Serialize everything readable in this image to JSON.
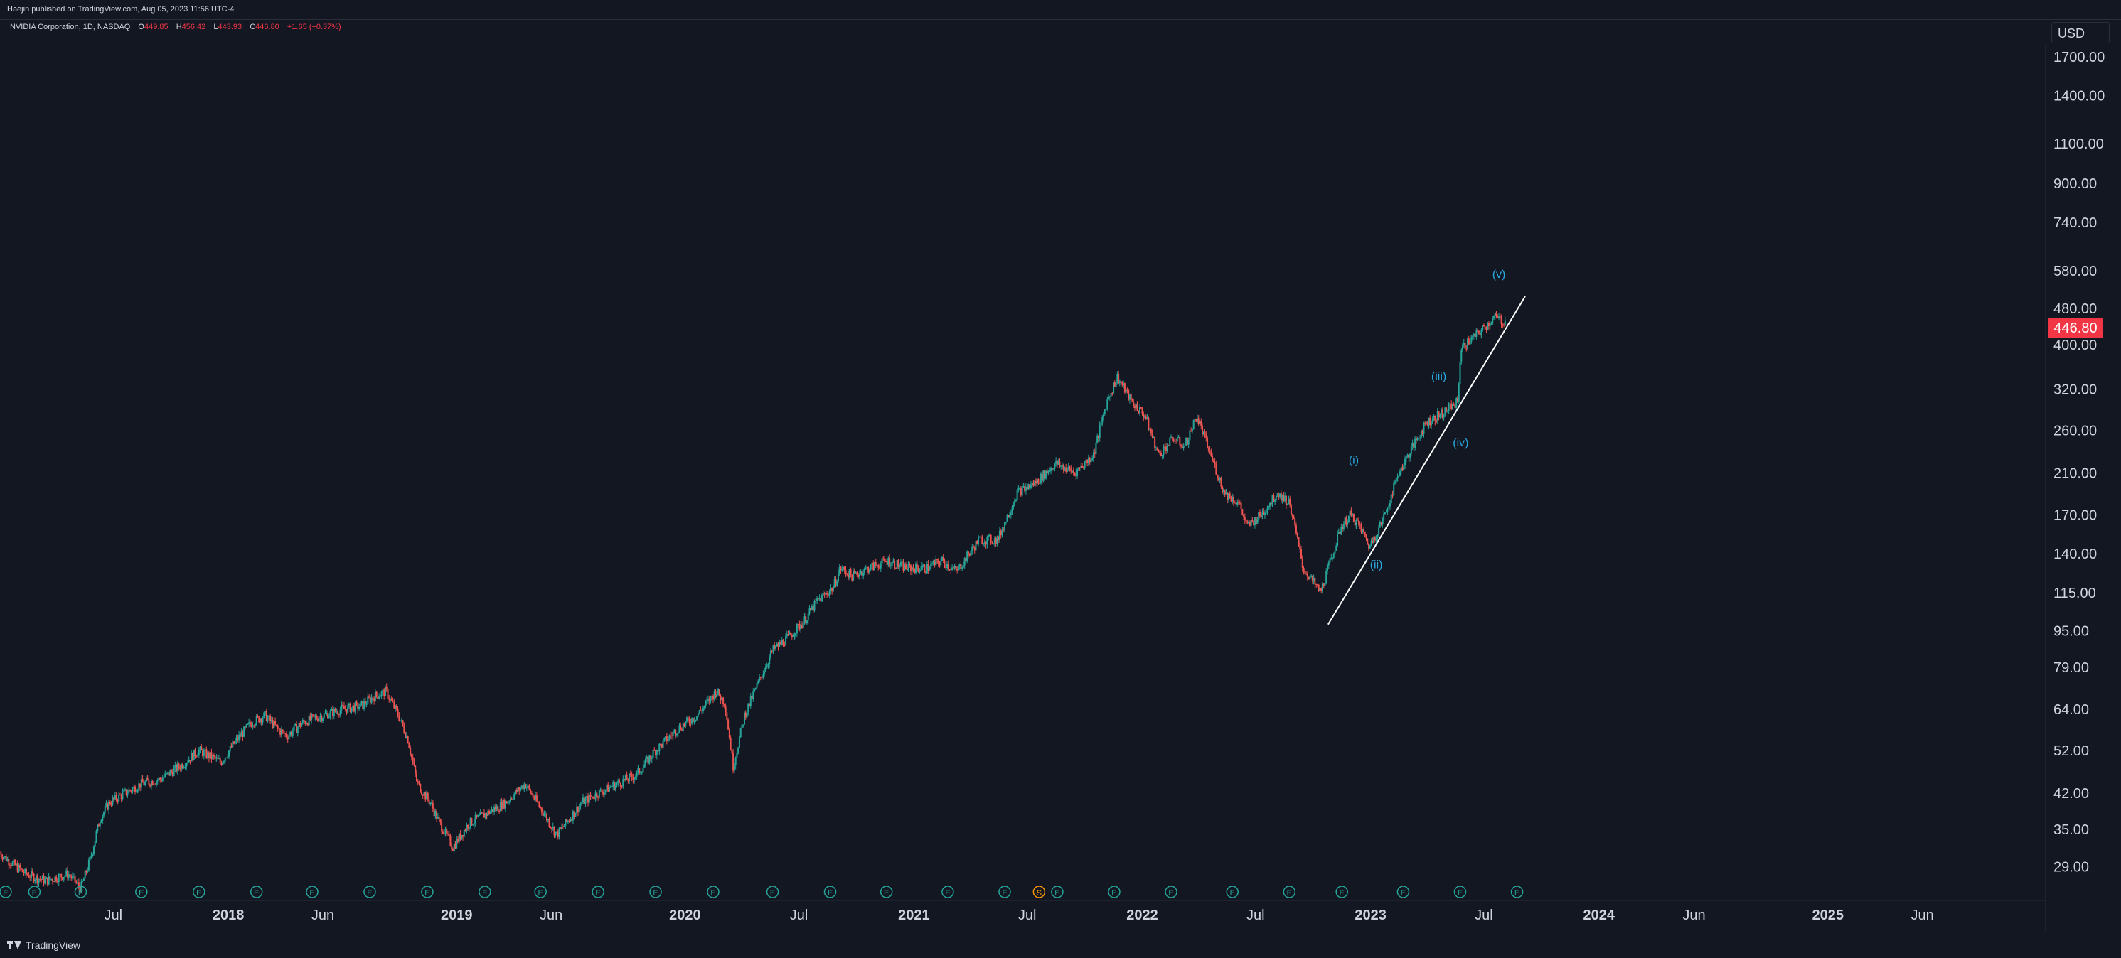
{
  "header": {
    "published": "Haejin published on TradingView.com, Aug 05, 2023 11:56 UTC-4"
  },
  "legend": {
    "symbol": "NVIDIA Corporation, 1D, NASDAQ",
    "o_label": "O",
    "o_value": "449.85",
    "h_label": "H",
    "h_value": "456.42",
    "l_label": "L",
    "l_value": "443.93",
    "c_label": "C",
    "c_value": "446.80",
    "change": "+1.65 (+0.37%)"
  },
  "price_axis": {
    "currency": "USD",
    "last_price": "446.80",
    "last_price_color": "#f23645"
  },
  "footer": {
    "brand": "TradingView"
  },
  "colors": {
    "background": "#131722",
    "up": "#26a69a",
    "down": "#ef5350",
    "wave_label": "#2aa8e0",
    "trendline": "#ffffff",
    "text": "#d1d4dc"
  },
  "chart_data": {
    "type": "line",
    "scale": "log",
    "title": "",
    "ylim": [
      26,
      1800
    ],
    "y_ticks": [
      1700,
      1400,
      1100,
      900,
      740,
      580,
      480,
      400,
      320,
      260,
      210,
      170,
      140,
      115,
      95,
      79,
      64,
      52,
      42,
      35,
      29
    ],
    "y_tick_labels": [
      "1700.00",
      "1400.00",
      "1100.00",
      "900.00",
      "740.00",
      "580.00",
      "480.00",
      "400.00",
      "320.00",
      "260.00",
      "210.00",
      "170.00",
      "140.00",
      "115.00",
      "95.00",
      "79.00",
      "64.00",
      "52.00",
      "42.00",
      "35.00",
      "29.00"
    ],
    "x_range": [
      "2017-01-01",
      "2025-12-15"
    ],
    "x_ticks": [
      {
        "date": "2017-07-01",
        "label": "Jul"
      },
      {
        "date": "2018-01-01",
        "label": "2018"
      },
      {
        "date": "2018-06-01",
        "label": "Jun"
      },
      {
        "date": "2019-01-01",
        "label": "2019"
      },
      {
        "date": "2019-06-01",
        "label": "Jun"
      },
      {
        "date": "2020-01-01",
        "label": "2020"
      },
      {
        "date": "2020-07-01",
        "label": "Jul"
      },
      {
        "date": "2021-01-01",
        "label": "2021"
      },
      {
        "date": "2021-07-01",
        "label": "Jul"
      },
      {
        "date": "2022-01-01",
        "label": "2022"
      },
      {
        "date": "2022-07-01",
        "label": "Jul"
      },
      {
        "date": "2023-01-01",
        "label": "2023"
      },
      {
        "date": "2023-07-01",
        "label": "Jul"
      },
      {
        "date": "2024-01-01",
        "label": "2024"
      },
      {
        "date": "2024-06-01",
        "label": "Jun"
      },
      {
        "date": "2025-01-01",
        "label": "2025"
      },
      {
        "date": "2025-06-01",
        "label": "Jun"
      }
    ],
    "series": [
      {
        "values_x": [
          "2017-01-01",
          "2017-02-10",
          "2017-03-15",
          "2017-04-20",
          "2017-05-10",
          "2017-05-25",
          "2017-06-10",
          "2017-06-25",
          "2017-07-20",
          "2017-08-15",
          "2017-09-15",
          "2017-10-15",
          "2017-11-15",
          "2017-12-20",
          "2018-01-15",
          "2018-02-08",
          "2018-03-01",
          "2018-03-20",
          "2018-04-05",
          "2018-05-01",
          "2018-06-01",
          "2018-07-01",
          "2018-08-01",
          "2018-08-20",
          "2018-09-10",
          "2018-09-30",
          "2018-10-15",
          "2018-10-30",
          "2018-11-20",
          "2018-12-05",
          "2018-12-26",
          "2019-01-20",
          "2019-02-20",
          "2019-03-20",
          "2019-04-20",
          "2019-05-20",
          "2019-06-10",
          "2019-07-20",
          "2019-08-15",
          "2019-09-15",
          "2019-10-15",
          "2019-11-15",
          "2019-12-20",
          "2020-01-20",
          "2020-02-20",
          "2020-03-05",
          "2020-03-18",
          "2020-04-05",
          "2020-04-25",
          "2020-05-20",
          "2020-06-15",
          "2020-07-10",
          "2020-07-30",
          "2020-08-25",
          "2020-09-05",
          "2020-09-25",
          "2020-10-20",
          "2020-11-20",
          "2020-12-20",
          "2021-01-20",
          "2021-02-15",
          "2021-03-10",
          "2021-04-15",
          "2021-05-15",
          "2021-06-15",
          "2021-07-15",
          "2021-08-15",
          "2021-09-15",
          "2021-10-15",
          "2021-11-05",
          "2021-11-22",
          "2021-12-15",
          "2022-01-05",
          "2022-01-27",
          "2022-02-20",
          "2022-03-10",
          "2022-03-29",
          "2022-04-20",
          "2022-05-12",
          "2022-06-05",
          "2022-06-17",
          "2022-07-10",
          "2022-08-05",
          "2022-08-25",
          "2022-09-15",
          "2022-10-13",
          "2022-10-25",
          "2022-11-15",
          "2022-11-30",
          "2022-12-15",
          "2022-12-30",
          "2023-01-20",
          "2023-02-15",
          "2023-03-10",
          "2023-03-30",
          "2023-04-20",
          "2023-05-20",
          "2023-05-25",
          "2023-06-10",
          "2023-06-20",
          "2023-07-05",
          "2023-07-18",
          "2023-08-04"
        ],
        "values_y": [
          31,
          28,
          27,
          28,
          26,
          30,
          37,
          40,
          42,
          44,
          45,
          48,
          52,
          49,
          55,
          60,
          62,
          58,
          56,
          60,
          62,
          64,
          65,
          68,
          70,
          62,
          55,
          44,
          40,
          36,
          32,
          36,
          38,
          40,
          44,
          38,
          34,
          40,
          42,
          44,
          46,
          52,
          58,
          62,
          70,
          66,
          48,
          62,
          72,
          86,
          92,
          100,
          110,
          118,
          130,
          125,
          130,
          135,
          130,
          130,
          135,
          128,
          150,
          150,
          190,
          200,
          220,
          210,
          230,
          300,
          340,
          300,
          280,
          230,
          250,
          240,
          280,
          230,
          190,
          180,
          160,
          170,
          190,
          180,
          130,
          115,
          130,
          160,
          170,
          160,
          145,
          165,
          210,
          240,
          270,
          280,
          300,
          390,
          410,
          420,
          440,
          460,
          446.8
        ]
      }
    ],
    "annotations": [
      {
        "date": "2022-12-05",
        "value": 220,
        "label": "(i)"
      },
      {
        "date": "2023-01-10",
        "value": 130,
        "label": "(ii)"
      },
      {
        "date": "2023-04-20",
        "value": 335,
        "label": "(iii)"
      },
      {
        "date": "2023-05-25",
        "value": 240,
        "label": "(iv)"
      },
      {
        "date": "2023-07-25",
        "value": 560,
        "label": "(v)"
      }
    ],
    "trendline": {
      "from": {
        "date": "2022-10-25",
        "value": 98
      },
      "to": {
        "date": "2023-09-05",
        "value": 510
      }
    },
    "event_markers": [
      {
        "date": "2017-01-10",
        "label": "E"
      },
      {
        "date": "2017-02-25",
        "label": "E"
      },
      {
        "date": "2017-05-10",
        "label": "E"
      },
      {
        "date": "2017-08-15",
        "label": "E"
      },
      {
        "date": "2017-11-15",
        "label": "E"
      },
      {
        "date": "2018-02-15",
        "label": "E"
      },
      {
        "date": "2018-05-15",
        "label": "E"
      },
      {
        "date": "2018-08-15",
        "label": "E"
      },
      {
        "date": "2018-11-15",
        "label": "E"
      },
      {
        "date": "2019-02-15",
        "label": "E"
      },
      {
        "date": "2019-05-15",
        "label": "E"
      },
      {
        "date": "2019-08-15",
        "label": "E"
      },
      {
        "date": "2019-11-15",
        "label": "E"
      },
      {
        "date": "2020-02-15",
        "label": "E"
      },
      {
        "date": "2020-05-20",
        "label": "E"
      },
      {
        "date": "2020-08-20",
        "label": "E"
      },
      {
        "date": "2020-11-18",
        "label": "E"
      },
      {
        "date": "2021-02-24",
        "label": "E"
      },
      {
        "date": "2021-05-26",
        "label": "E"
      },
      {
        "date": "2021-07-20",
        "label": "S"
      },
      {
        "date": "2021-08-18",
        "label": "E"
      },
      {
        "date": "2021-11-17",
        "label": "E"
      },
      {
        "date": "2022-02-16",
        "label": "E"
      },
      {
        "date": "2022-05-25",
        "label": "E"
      },
      {
        "date": "2022-08-24",
        "label": "E"
      },
      {
        "date": "2022-11-16",
        "label": "E"
      },
      {
        "date": "2023-02-22",
        "label": "E"
      },
      {
        "date": "2023-05-24",
        "label": "E"
      },
      {
        "date": "2023-08-23",
        "label": "E"
      }
    ]
  }
}
